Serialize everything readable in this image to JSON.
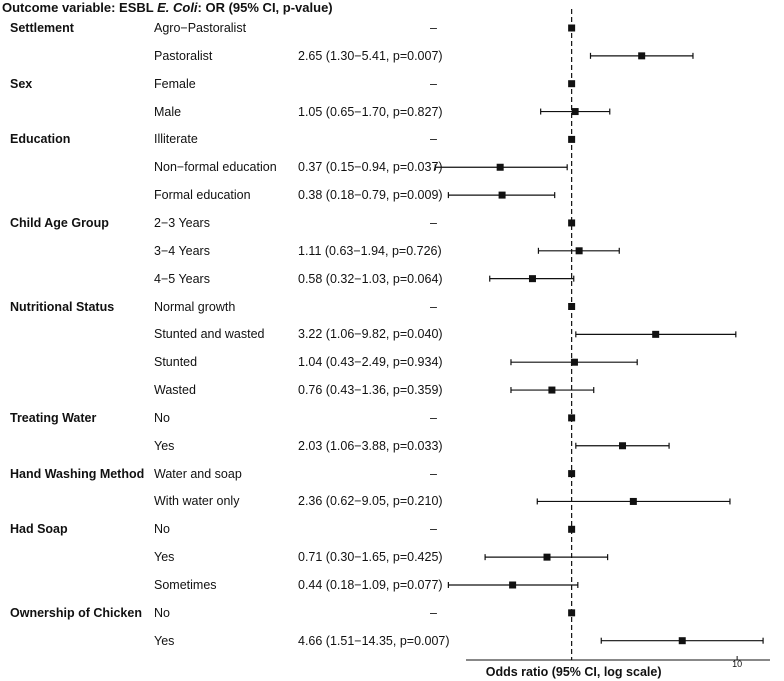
{
  "title": {
    "prefix": "Outcome variable: ESBL ",
    "organism": "E. Coli",
    "suffix": ": OR (95% CI, p-value)"
  },
  "chart_data": {
    "type": "forest",
    "xlabel": "Odds ratio (95% CI, log scale)",
    "x_scale": "log",
    "xlim": [
      0.23,
      15.8
    ],
    "reference_line": 1,
    "x_ticks": [
      10
    ],
    "reference_mark": "–",
    "rows": [
      {
        "variable": "Settlement",
        "level": "Agro−Pastoralist",
        "text": "–",
        "or": 1,
        "lo": null,
        "hi": null,
        "ref": true
      },
      {
        "variable": "",
        "level": "Pastoralist",
        "text": "2.65 (1.30−5.41, p=0.007)",
        "or": 2.65,
        "lo": 1.3,
        "hi": 5.41,
        "ref": false
      },
      {
        "variable": "Sex",
        "level": "Female",
        "text": "–",
        "or": 1,
        "lo": null,
        "hi": null,
        "ref": true
      },
      {
        "variable": "",
        "level": "Male",
        "text": "1.05 (0.65−1.70, p=0.827)",
        "or": 1.05,
        "lo": 0.65,
        "hi": 1.7,
        "ref": false
      },
      {
        "variable": "Education",
        "level": "Illiterate",
        "text": "–",
        "or": 1,
        "lo": null,
        "hi": null,
        "ref": true
      },
      {
        "variable": "",
        "level": "Non−formal education",
        "text": "0.37 (0.15−0.94, p=0.037)",
        "or": 0.37,
        "lo": 0.15,
        "hi": 0.94,
        "ref": false
      },
      {
        "variable": "",
        "level": "Formal education",
        "text": "0.38 (0.18−0.79, p=0.009)",
        "or": 0.38,
        "lo": 0.18,
        "hi": 0.79,
        "ref": false
      },
      {
        "variable": "Child Age Group",
        "level": "2−3 Years",
        "text": "–",
        "or": 1,
        "lo": null,
        "hi": null,
        "ref": true
      },
      {
        "variable": "",
        "level": "3−4 Years",
        "text": "1.11 (0.63−1.94, p=0.726)",
        "or": 1.11,
        "lo": 0.63,
        "hi": 1.94,
        "ref": false
      },
      {
        "variable": "",
        "level": "4−5 Years",
        "text": "0.58 (0.32−1.03, p=0.064)",
        "or": 0.58,
        "lo": 0.32,
        "hi": 1.03,
        "ref": false
      },
      {
        "variable": "Nutritional Status",
        "level": "Normal growth",
        "text": "–",
        "or": 1,
        "lo": null,
        "hi": null,
        "ref": true
      },
      {
        "variable": "",
        "level": "Stunted and wasted",
        "text": "3.22 (1.06−9.82, p=0.040)",
        "or": 3.22,
        "lo": 1.06,
        "hi": 9.82,
        "ref": false
      },
      {
        "variable": "",
        "level": "Stunted",
        "text": "1.04 (0.43−2.49, p=0.934)",
        "or": 1.04,
        "lo": 0.43,
        "hi": 2.49,
        "ref": false
      },
      {
        "variable": "",
        "level": "Wasted",
        "text": "0.76 (0.43−1.36, p=0.359)",
        "or": 0.76,
        "lo": 0.43,
        "hi": 1.36,
        "ref": false
      },
      {
        "variable": "Treating Water",
        "level": "No",
        "text": "–",
        "or": 1,
        "lo": null,
        "hi": null,
        "ref": true
      },
      {
        "variable": "",
        "level": "Yes",
        "text": "2.03 (1.06−3.88, p=0.033)",
        "or": 2.03,
        "lo": 1.06,
        "hi": 3.88,
        "ref": false
      },
      {
        "variable": "Hand Washing Method",
        "level": "Water and soap",
        "text": "–",
        "or": 1,
        "lo": null,
        "hi": null,
        "ref": true
      },
      {
        "variable": "",
        "level": "With water only",
        "text": "2.36 (0.62−9.05, p=0.210)",
        "or": 2.36,
        "lo": 0.62,
        "hi": 9.05,
        "ref": false
      },
      {
        "variable": "Had Soap",
        "level": "No",
        "text": "–",
        "or": 1,
        "lo": null,
        "hi": null,
        "ref": true
      },
      {
        "variable": "",
        "level": "Yes",
        "text": "0.71 (0.30−1.65, p=0.425)",
        "or": 0.71,
        "lo": 0.3,
        "hi": 1.65,
        "ref": false
      },
      {
        "variable": "",
        "level": "Sometimes",
        "text": "0.44 (0.18−1.09, p=0.077)",
        "or": 0.44,
        "lo": 0.18,
        "hi": 1.09,
        "ref": false
      },
      {
        "variable": "Ownership of Chicken",
        "level": "No",
        "text": "–",
        "or": 1,
        "lo": null,
        "hi": null,
        "ref": true
      },
      {
        "variable": "",
        "level": "Yes",
        "text": "4.66 (1.51−14.35, p=0.007)",
        "or": 4.66,
        "lo": 1.51,
        "hi": 14.35,
        "ref": false
      }
    ]
  }
}
